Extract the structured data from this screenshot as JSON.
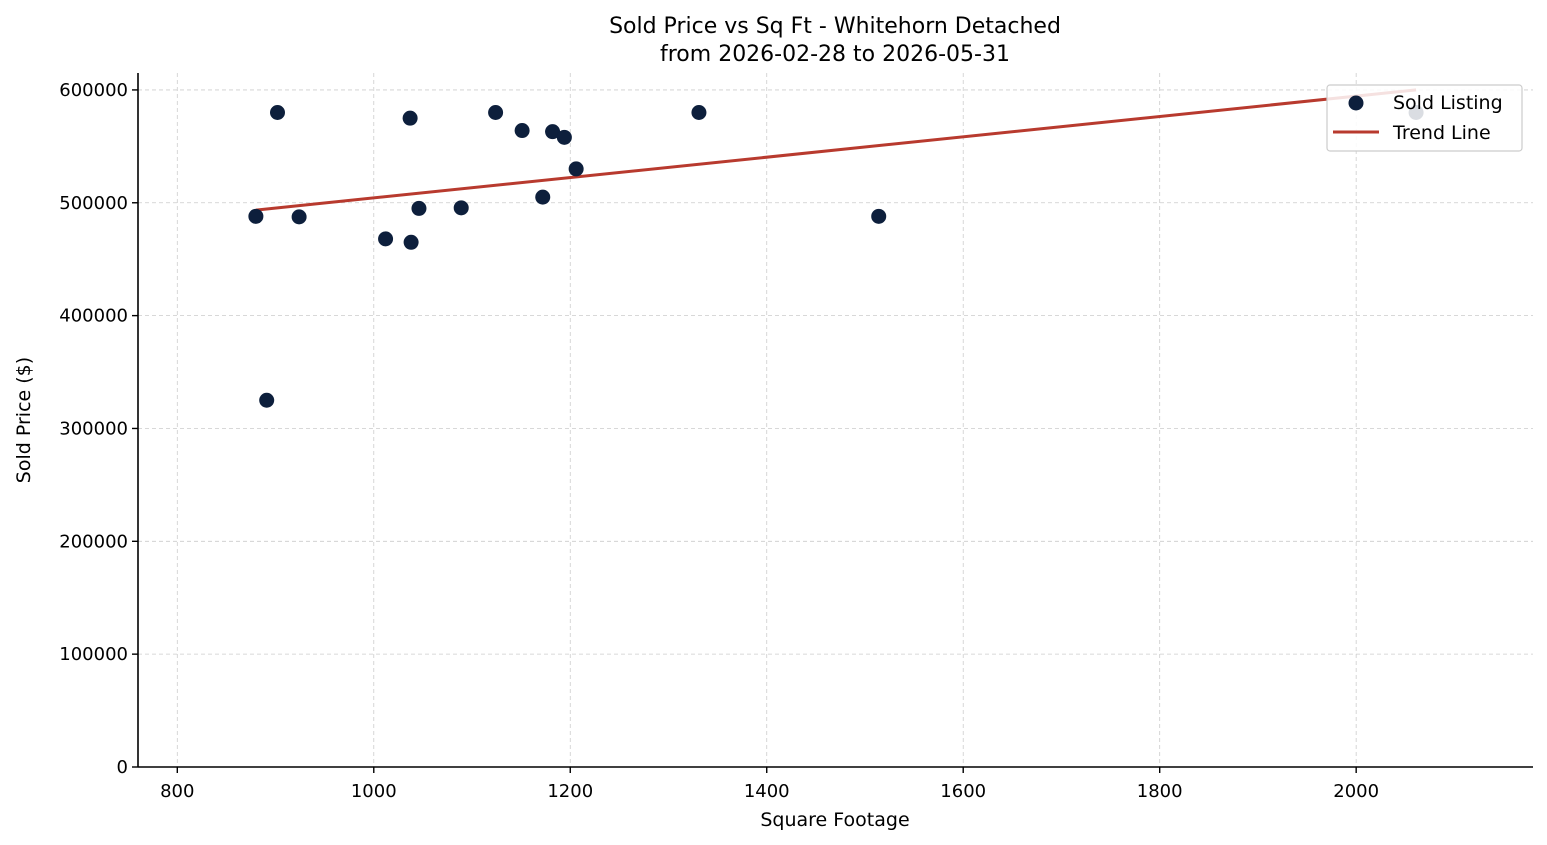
{
  "chart_data": {
    "type": "scatter",
    "title_line1": "Sold Price vs Sq Ft - Whitehorn Detached",
    "title_line2": "from 2026-02-28 to 2026-05-31",
    "xlabel": "Square Footage",
    "ylabel": "Sold Price ($)",
    "xlim": [
      760,
      2180
    ],
    "ylim": [
      0,
      615000
    ],
    "x_ticks": [
      800,
      1000,
      1200,
      1400,
      1600,
      1800,
      2000
    ],
    "y_ticks": [
      0,
      100000,
      200000,
      300000,
      400000,
      500000,
      600000
    ],
    "grid": true,
    "legend_position": "top-right",
    "colors": {
      "points": "#0d1f3c",
      "trend": "#b83a2e"
    },
    "series": [
      {
        "name": "Sold Listing",
        "kind": "scatter",
        "points": [
          {
            "x": 880,
            "y": 488000
          },
          {
            "x": 891,
            "y": 325000
          },
          {
            "x": 902,
            "y": 580000
          },
          {
            "x": 924,
            "y": 487500
          },
          {
            "x": 1012,
            "y": 468000
          },
          {
            "x": 1037,
            "y": 575000
          },
          {
            "x": 1038,
            "y": 465000
          },
          {
            "x": 1046,
            "y": 495000
          },
          {
            "x": 1089,
            "y": 495500
          },
          {
            "x": 1124,
            "y": 580000
          },
          {
            "x": 1151,
            "y": 564000
          },
          {
            "x": 1172,
            "y": 505000
          },
          {
            "x": 1182,
            "y": 563000
          },
          {
            "x": 1194,
            "y": 558000
          },
          {
            "x": 1206,
            "y": 530000
          },
          {
            "x": 1331,
            "y": 580000
          },
          {
            "x": 1514,
            "y": 488000
          },
          {
            "x": 2061,
            "y": 580000
          }
        ]
      },
      {
        "name": "Trend Line",
        "kind": "line",
        "points": [
          {
            "x": 880,
            "y": 493500
          },
          {
            "x": 2061,
            "y": 600000
          }
        ]
      }
    ]
  }
}
